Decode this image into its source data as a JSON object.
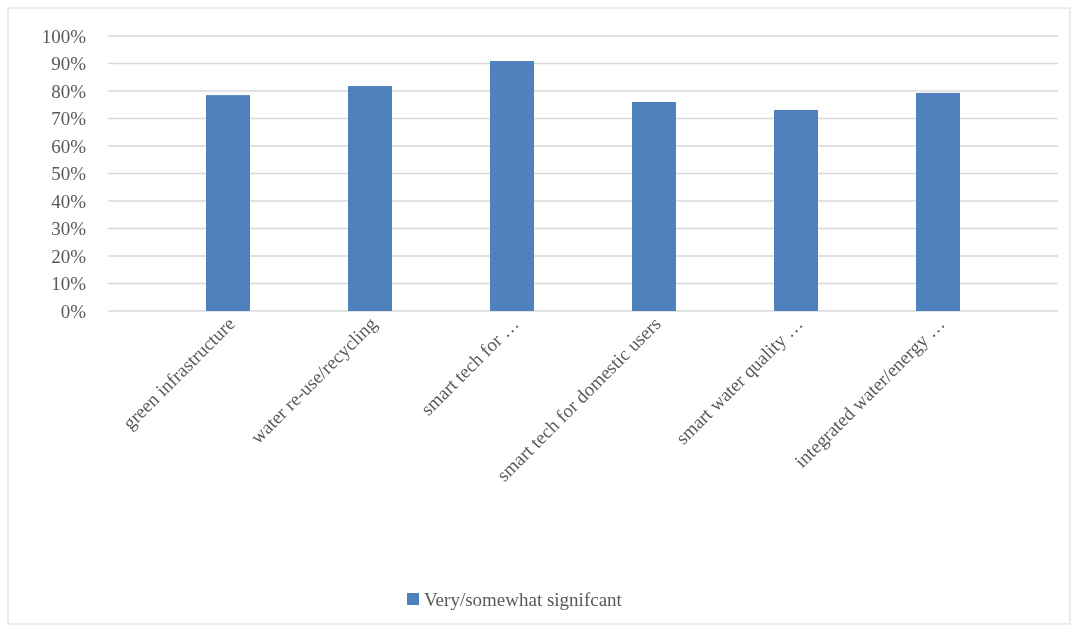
{
  "chart_data": {
    "type": "bar",
    "categories": [
      "green infrastructure",
      "water re-use/recycling",
      "smart tech for …",
      "smart tech for domestic users",
      "smart water quality …",
      "integrated water/energy …"
    ],
    "series": [
      {
        "name": "Very/somewhat signifcant",
        "color": "#4f81bd",
        "values": [
          78.5,
          81.8,
          90.9,
          76,
          73.1,
          79.3
        ]
      }
    ],
    "ylim": [
      0,
      100
    ],
    "yticks": [
      {
        "value": 0,
        "label": "0%"
      },
      {
        "value": 10,
        "label": "10%"
      },
      {
        "value": 20,
        "label": "20%"
      },
      {
        "value": 30,
        "label": "30%"
      },
      {
        "value": 40,
        "label": "40%"
      },
      {
        "value": 50,
        "label": "50%"
      },
      {
        "value": 60,
        "label": "60%"
      },
      {
        "value": 70,
        "label": "70%"
      },
      {
        "value": 80,
        "label": "80%"
      },
      {
        "value": 90,
        "label": "90%"
      },
      {
        "value": 100,
        "label": "100%"
      }
    ],
    "grid": "y",
    "legend": "bottom"
  }
}
